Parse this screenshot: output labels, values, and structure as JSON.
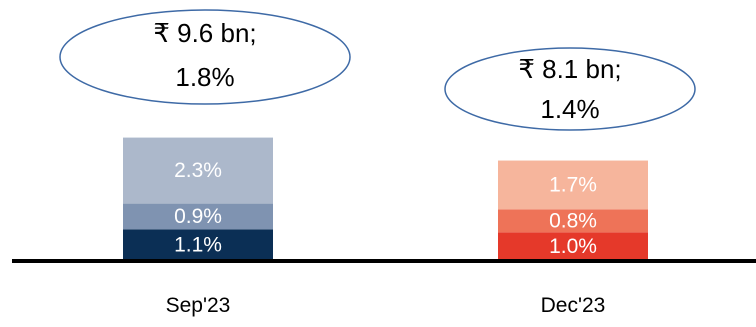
{
  "chart_data": {
    "type": "bar",
    "stacked": true,
    "categories": [
      "Sep'23",
      "Dec'23"
    ],
    "series": [
      {
        "values": [
          1.1,
          1.0
        ],
        "labels": [
          "1.1%",
          "1.0%"
        ],
        "colors": [
          "#0b2f55",
          "#e5392a"
        ]
      },
      {
        "values": [
          0.9,
          0.8
        ],
        "labels": [
          "0.9%",
          "0.8%"
        ],
        "colors": [
          "#7f93b1",
          "#ee7358"
        ]
      },
      {
        "values": [
          2.3,
          1.7
        ],
        "labels": [
          "2.3%",
          "1.7%"
        ],
        "colors": [
          "#acb8cb",
          "#f6b59c"
        ]
      }
    ],
    "totals": [
      {
        "line1": "₹ 9.6 bn;",
        "line2": "1.8%"
      },
      {
        "line1": "₹  8.1 bn;",
        "line2": "1.4%"
      }
    ],
    "title": "",
    "xlabel": "",
    "ylabel": "",
    "ylim": [
      0,
      5
    ],
    "grid": false,
    "legend": "none"
  },
  "colors": {
    "axis": "#000000",
    "bubble_stroke": "#3e6aa6",
    "label_text": "#ffffff",
    "text": "#000000"
  }
}
